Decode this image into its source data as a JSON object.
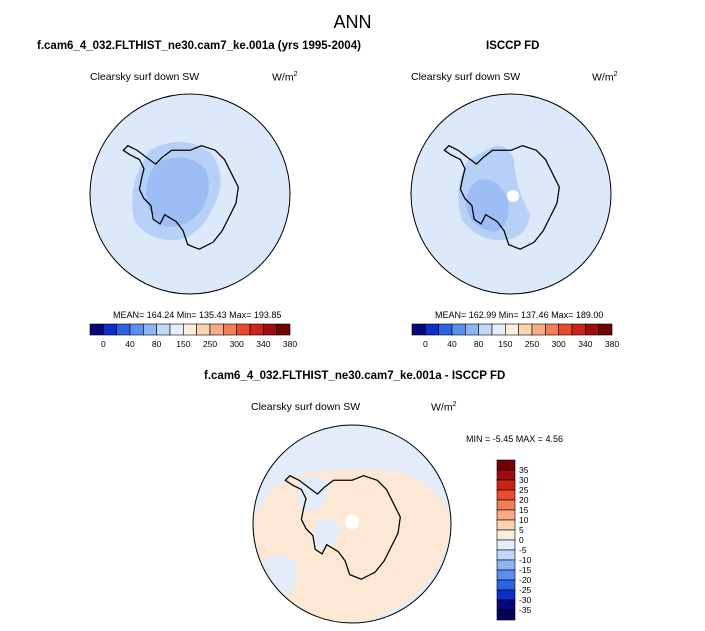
{
  "figure": {
    "title": "ANN",
    "panel1": {
      "case": "f.cam6_4_032.FLTHIST_ne30.cam7_ke.001a (yrs 1995-2004)",
      "variable": "Clearsky surf down SW",
      "units_base": "W/m",
      "units_exp": "2",
      "stats": "MEAN= 164.24   Min= 135.43   Max= 193.85"
    },
    "panel2": {
      "case": "ISCCP FD",
      "variable": "Clearsky surf down SW",
      "units_base": "W/m",
      "units_exp": "2",
      "stats": "MEAN= 162.99   Min= 137.46   Max= 189.00"
    },
    "panel3": {
      "case": "f.cam6_4_032.FLTHIST_ne30.cam7_ke.001a - ISCCP FD",
      "variable": "Clearsky surf down SW",
      "units_base": "W/m",
      "units_exp": "2",
      "stats": "MIN =  -5.45 MAX =   4.56"
    }
  },
  "colorbar_abs": {
    "tick_labels": [
      "0",
      "40",
      "80",
      "150",
      "250",
      "300",
      "340",
      "380"
    ],
    "colors": [
      "#08047a",
      "#0b2fc7",
      "#2c63e6",
      "#5a8ff0",
      "#8db5f5",
      "#c0d9fa",
      "#e4eefc",
      "#fdeee0",
      "#fcd2b0",
      "#f8ab85",
      "#f37f58",
      "#e84b2e",
      "#cc2319",
      "#9e0c0f",
      "#6e0205"
    ]
  },
  "colorbar_diff": {
    "tick_labels": [
      "35",
      "30",
      "25",
      "20",
      "15",
      "10",
      "5",
      "0",
      "-5",
      "-10",
      "-15",
      "-20",
      "-25",
      "-30",
      "-35"
    ],
    "colors_top_to_bottom": [
      "#6e0205",
      "#9e0c0f",
      "#cc2319",
      "#e84b2e",
      "#f37f58",
      "#f8ab85",
      "#fcd2b0",
      "#fdeee0",
      "#e4eefc",
      "#c0d9fa",
      "#8db5f5",
      "#5a8ff0",
      "#2c63e6",
      "#0b2fc7",
      "#08047a",
      "#05025a"
    ]
  },
  "map_colors": {
    "ocean_light": "#dbe9fb",
    "mid_blue": "#b7d0f7",
    "interior_blue": "#8db5f5",
    "diff_positive": "#fde8d6",
    "diff_zero": "#e3edf9",
    "coastline": "#000000"
  }
}
